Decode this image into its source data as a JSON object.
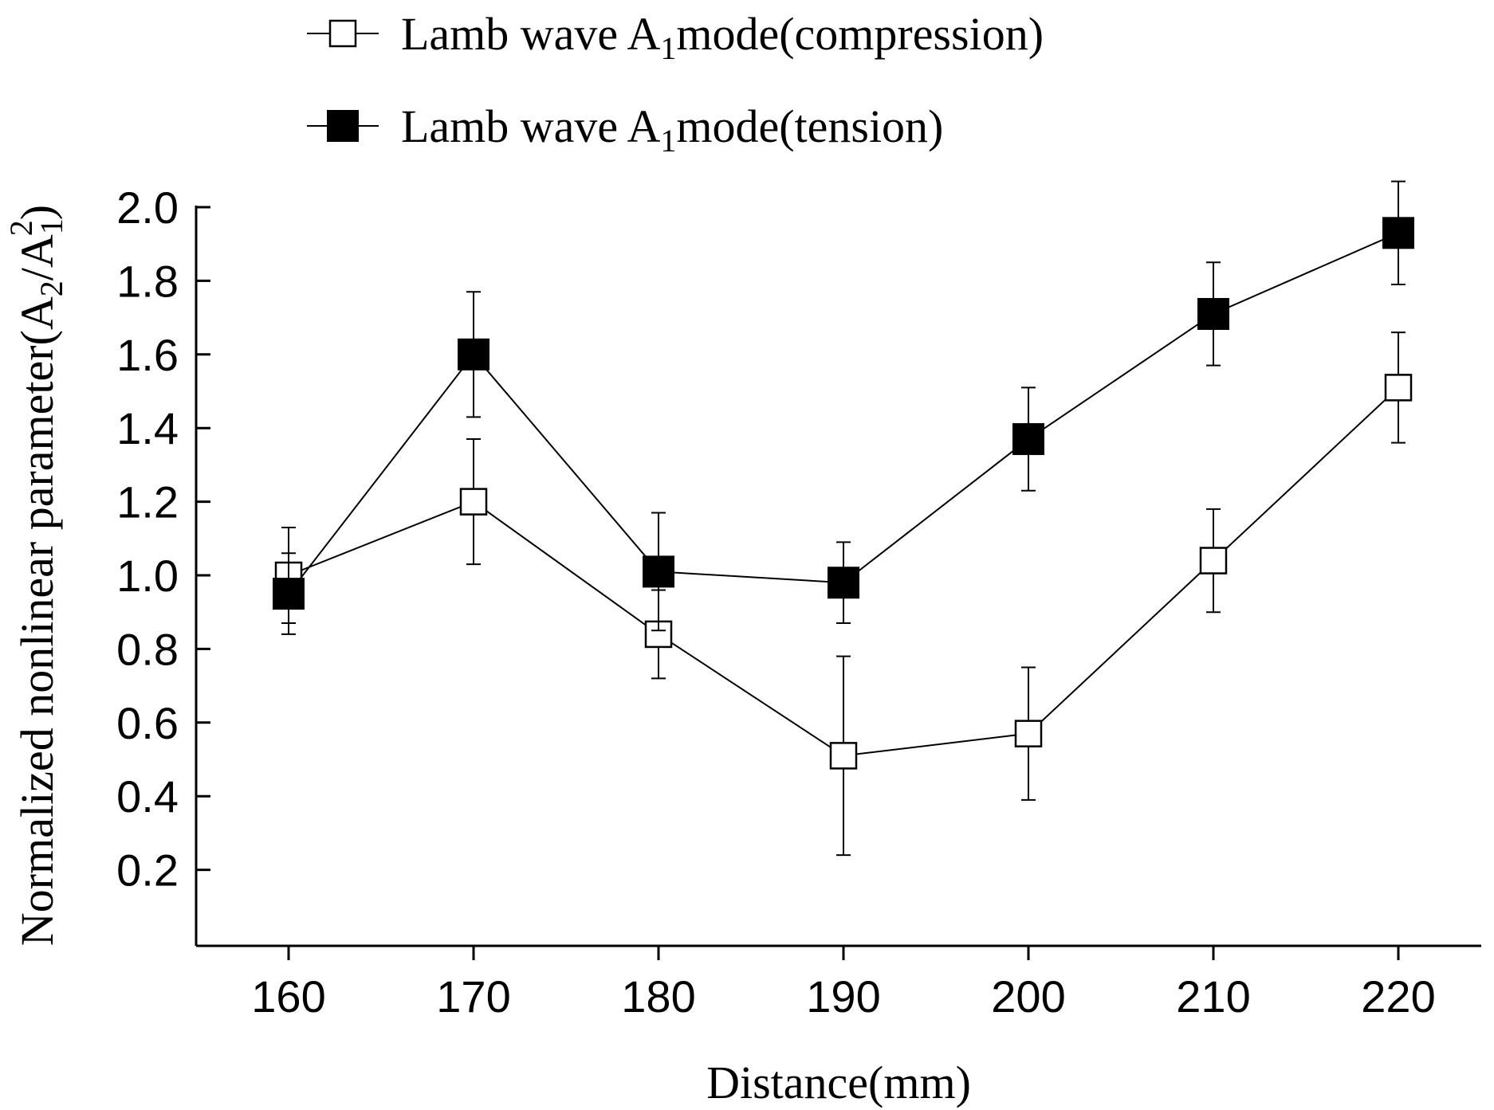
{
  "chart_data": {
    "type": "line",
    "title": "",
    "xlabel": "Distance(mm)",
    "ylabel_prefix": "Normalized nonlinear parameter(A",
    "ylabel_sub2": "2",
    "ylabel_slash": "/A",
    "ylabel_sub1": "1",
    "ylabel_sup": "2",
    "ylabel_suffix": ")",
    "x": [
      160,
      170,
      180,
      190,
      200,
      210,
      220
    ],
    "x_tick_labels": [
      "160",
      "170",
      "180",
      "190",
      "200",
      "210",
      "220"
    ],
    "y_ticks": [
      0.2,
      0.4,
      0.6,
      0.8,
      1.0,
      1.2,
      1.4,
      1.6,
      1.8,
      2.0
    ],
    "y_tick_labels": [
      "0.2",
      "0.4",
      "0.6",
      "0.8",
      "1.0",
      "1.2",
      "1.4",
      "1.6",
      "1.8",
      "2.0"
    ],
    "xlim": [
      155,
      225
    ],
    "ylim": [
      0.0,
      2.0
    ],
    "grid": false,
    "legend_position": "top",
    "series": [
      {
        "name": "compression",
        "legend_prefix": "Lamb wave A",
        "legend_sub": "1",
        "legend_suffix": "mode(compression)",
        "marker": "open-square",
        "x": [
          160,
          170,
          180,
          190,
          200,
          210,
          220
        ],
        "values": [
          1.0,
          1.2,
          0.84,
          0.51,
          0.57,
          1.04,
          1.51
        ],
        "error_upper": [
          0.13,
          0.17,
          0.12,
          0.27,
          0.18,
          0.14,
          0.15
        ],
        "error_lower": [
          0.13,
          0.17,
          0.12,
          0.27,
          0.18,
          0.14,
          0.15
        ]
      },
      {
        "name": "tension",
        "legend_prefix": "Lamb wave A",
        "legend_sub": "1",
        "legend_suffix": "mode(tension)",
        "marker": "filled-square",
        "x": [
          160,
          170,
          180,
          190,
          200,
          210,
          220
        ],
        "values": [
          0.95,
          1.6,
          1.01,
          0.98,
          1.37,
          1.71,
          1.93
        ],
        "error_upper": [
          0.11,
          0.17,
          0.16,
          0.11,
          0.14,
          0.14,
          0.14
        ],
        "error_lower": [
          0.11,
          0.17,
          0.16,
          0.11,
          0.14,
          0.14,
          0.14
        ]
      }
    ],
    "colors": {
      "line": "#000000",
      "open_fill": "#ffffff",
      "filled_fill": "#000000"
    }
  }
}
